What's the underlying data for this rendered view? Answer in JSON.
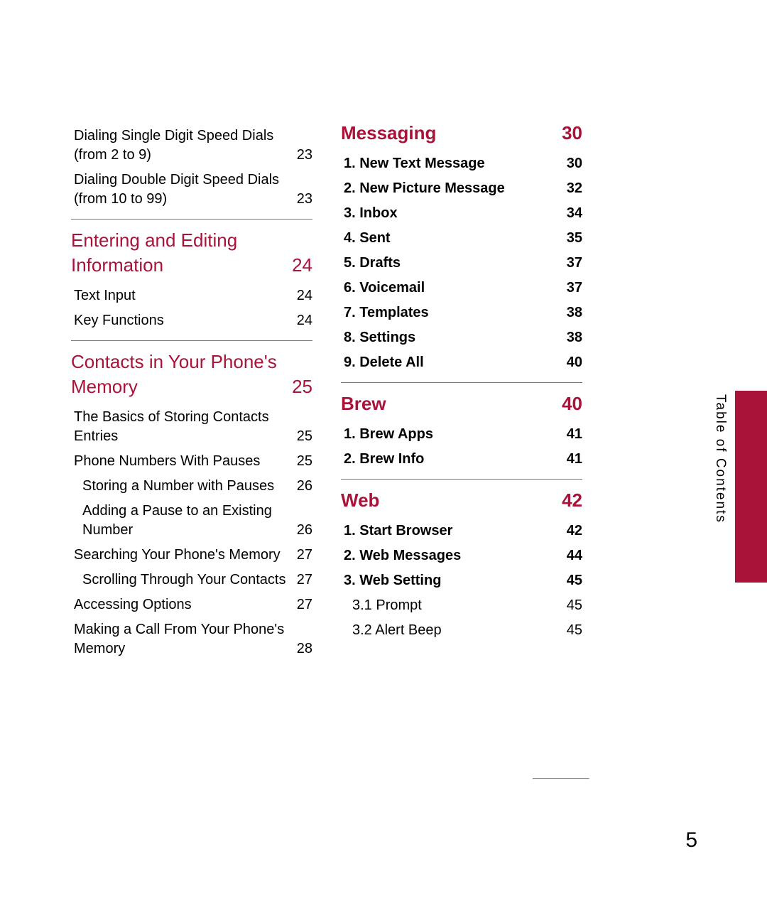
{
  "colors": {
    "accent": "#a9133a",
    "text": "#000000",
    "rule": "#777777",
    "background": "#ffffff"
  },
  "typography": {
    "heading_fontsize": 26,
    "body_fontsize": 20,
    "pagenum_fontsize": 30,
    "sidelabel_fontsize": 19
  },
  "side_label": "Table of Contents",
  "page_number": "5",
  "left_column": {
    "top_items": [
      {
        "title": "Dialing Single Digit Speed Dials (from 2 to 9)",
        "page": "23",
        "level": 1
      },
      {
        "title": "Dialing Double Digit Speed Dials (from 10 to 99)",
        "page": "23",
        "level": 1
      }
    ],
    "section1": {
      "title": "Entering and Editing Information",
      "page": "24"
    },
    "section1_items": [
      {
        "title": "Text Input",
        "page": "24",
        "level": 1
      },
      {
        "title": "Key Functions",
        "page": "24",
        "level": 1
      }
    ],
    "section2": {
      "title": "Contacts in Your Phone's Memory",
      "page": "25"
    },
    "section2_items": [
      {
        "title": "The Basics of Storing Contacts Entries",
        "page": "25",
        "level": 1
      },
      {
        "title": "Phone Numbers With Pauses",
        "page": "25",
        "level": 1
      },
      {
        "title": "Storing a Number with Pauses",
        "page": "26",
        "level": 2
      },
      {
        "title": "Adding a Pause to an Existing Number",
        "page": "26",
        "level": 2
      },
      {
        "title": "Searching Your Phone's Memory",
        "page": "27",
        "level": 1
      },
      {
        "title": "Scrolling Through Your Contacts",
        "page": "27",
        "level": 2
      },
      {
        "title": "Accessing Options",
        "page": "27",
        "level": 1
      },
      {
        "title": "Making a Call From Your Phone's Memory",
        "page": "28",
        "level": 1
      }
    ]
  },
  "right_column": {
    "section1": {
      "title": "Messaging",
      "page": "30"
    },
    "section1_items": [
      {
        "title": "1. New Text Message",
        "page": "30",
        "level": 1,
        "bold": true
      },
      {
        "title": "2. New Picture Message",
        "page": "32",
        "level": 1,
        "bold": true
      },
      {
        "title": "3. Inbox",
        "page": "34",
        "level": 1,
        "bold": true
      },
      {
        "title": "4. Sent",
        "page": "35",
        "level": 1,
        "bold": true
      },
      {
        "title": "5. Drafts",
        "page": "37",
        "level": 1,
        "bold": true
      },
      {
        "title": "6. Voicemail",
        "page": "37",
        "level": 1,
        "bold": true
      },
      {
        "title": "7. Templates",
        "page": "38",
        "level": 1,
        "bold": true
      },
      {
        "title": "8. Settings",
        "page": "38",
        "level": 1,
        "bold": true
      },
      {
        "title": "9. Delete All",
        "page": "40",
        "level": 1,
        "bold": true
      }
    ],
    "section2": {
      "title": "Brew",
      "page": "40"
    },
    "section2_items": [
      {
        "title": "1. Brew Apps",
        "page": "41",
        "level": 1,
        "bold": true
      },
      {
        "title": "2. Brew Info",
        "page": "41",
        "level": 1,
        "bold": true
      }
    ],
    "section3": {
      "title": "Web",
      "page": "42"
    },
    "section3_items": [
      {
        "title": "1. Start Browser",
        "page": "42",
        "level": 1,
        "bold": true
      },
      {
        "title": "2. Web Messages",
        "page": "44",
        "level": 1,
        "bold": true
      },
      {
        "title": "3. Web Setting",
        "page": "45",
        "level": 1,
        "bold": true
      },
      {
        "title": "3.1 Prompt",
        "page": "45",
        "level": 2,
        "bold": false
      },
      {
        "title": "3.2 Alert Beep",
        "page": "45",
        "level": 2,
        "bold": false
      }
    ]
  }
}
